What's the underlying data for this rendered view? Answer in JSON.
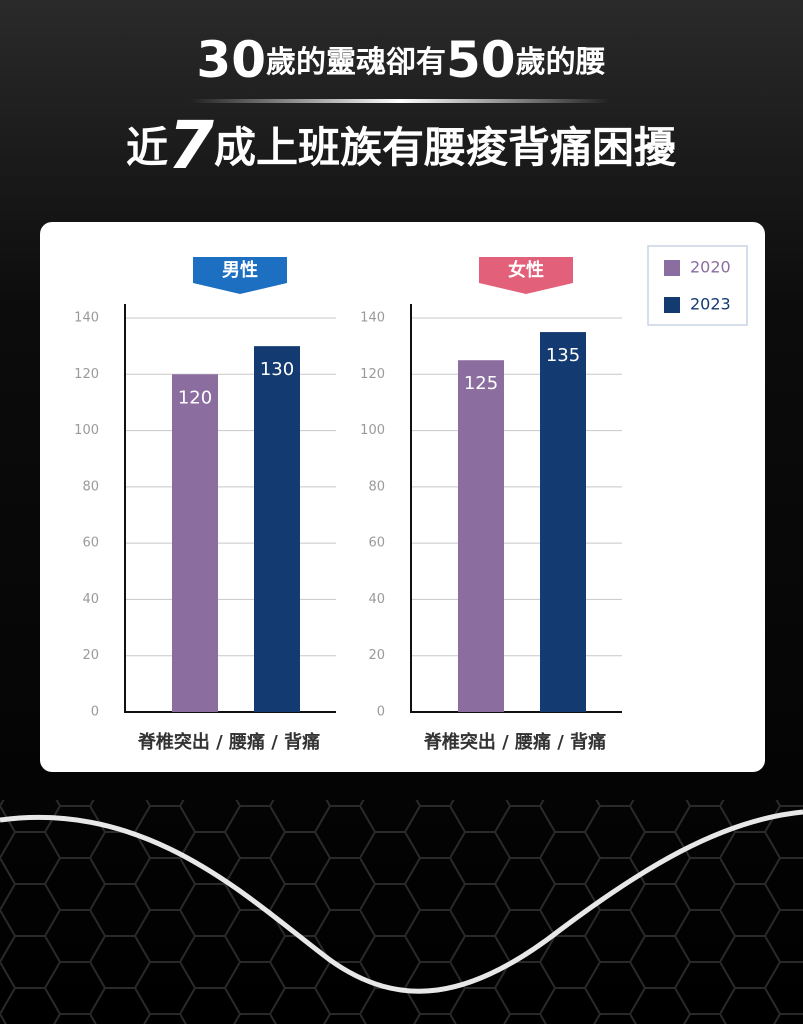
{
  "headline": [
    "30",
    "歲的靈魂卻有",
    "50",
    "歲的腰"
  ],
  "subheadline": [
    "近",
    "7",
    "成上班族有腰痠背痛困擾"
  ],
  "chart_data": [
    {
      "type": "bar",
      "title": "男性",
      "title_color": "#1d6fc2",
      "categories": [
        "脊椎突出 / 腰痛 / 背痛"
      ],
      "series": [
        {
          "name": "2020",
          "color": "#8b6d9f",
          "values": [
            120
          ]
        },
        {
          "name": "2023",
          "color": "#143a72",
          "values": [
            130
          ]
        }
      ],
      "ylim": [
        0,
        140
      ],
      "yticks": [
        0,
        20,
        40,
        60,
        80,
        100,
        120,
        140
      ],
      "grid": true,
      "legend": "top-right"
    },
    {
      "type": "bar",
      "title": "女性",
      "title_color": "#e3607a",
      "categories": [
        "脊椎突出 / 腰痛 / 背痛"
      ],
      "series": [
        {
          "color": "#8b6d9f",
          "values": [
            125
          ]
        },
        {
          "color": "#143a72",
          "values": [
            135
          ]
        }
      ],
      "ylim": [
        0,
        140
      ],
      "yticks": [
        0,
        20,
        40,
        60,
        80,
        100,
        120,
        140
      ],
      "grid": true
    }
  ]
}
